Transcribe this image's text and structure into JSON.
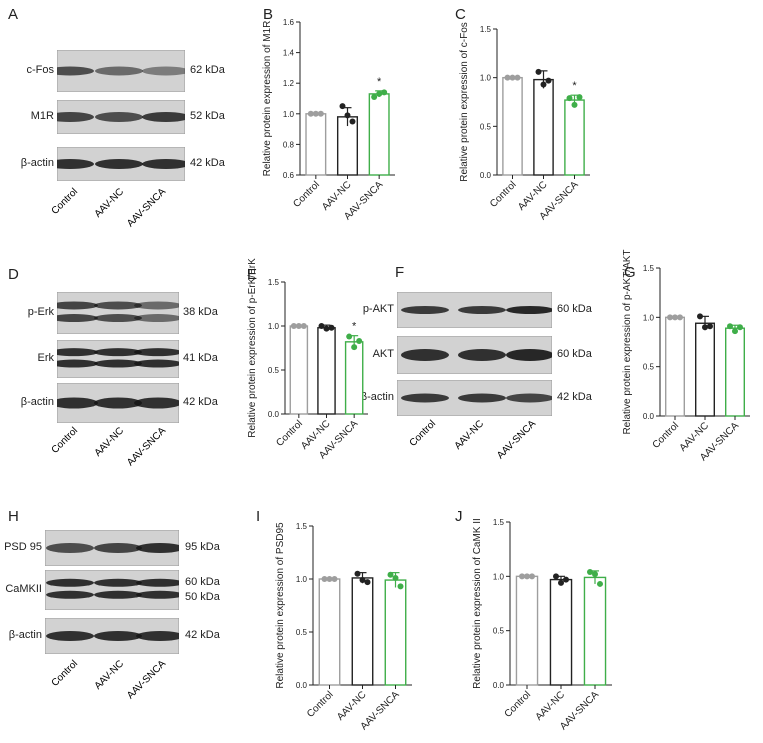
{
  "blots": [
    {
      "letter": "A",
      "rows": [
        {
          "label": "c-Fos",
          "kda": [
            "62 kDa"
          ]
        },
        {
          "label": "M1R",
          "kda": [
            "52 kDa"
          ]
        },
        {
          "label": "β-actin",
          "kda": [
            "42 kDa"
          ]
        }
      ],
      "lanes": [
        "Control",
        "AAV-NC",
        "AAV-SNCA"
      ]
    },
    {
      "letter": "D",
      "rows": [
        {
          "label": "p-Erk",
          "kda": [
            "38 kDa"
          ]
        },
        {
          "label": "Erk",
          "kda": [
            "41 kDa"
          ]
        },
        {
          "label": "β-actin",
          "kda": [
            "42 kDa"
          ]
        }
      ],
      "lanes": [
        "Control",
        "AAV-NC",
        "AAV-SNCA"
      ]
    },
    {
      "letter": "F",
      "rows": [
        {
          "label": "p-AKT",
          "kda": [
            "60 kDa"
          ]
        },
        {
          "label": "AKT",
          "kda": [
            "60 kDa"
          ]
        },
        {
          "label": "β-actin",
          "kda": [
            "42 kDa"
          ]
        }
      ],
      "lanes": [
        "Control",
        "AAV-NC",
        "AAV-SNCA"
      ]
    },
    {
      "letter": "H",
      "rows": [
        {
          "label": "PSD 95",
          "kda": [
            "95 kDa"
          ]
        },
        {
          "label": "CaMKII",
          "kda": [
            "60 kDa",
            "50 kDa"
          ]
        },
        {
          "label": "β-actin",
          "kda": [
            "42 kDa"
          ]
        }
      ],
      "lanes": [
        "Control",
        "AAV-NC",
        "AAV-SNCA"
      ]
    }
  ],
  "colors": {
    "control": "#9e9e9e",
    "nc": "#222222",
    "snca": "#3fae49"
  },
  "chart_data": [
    {
      "letter": "B",
      "type": "bar",
      "categories": [
        "Control",
        "AAV-NC",
        "AAV-SNCA"
      ],
      "ylabel": "Relative protein expression of M1R",
      "ylim": [
        0.6,
        1.6
      ],
      "yticks": [
        "0.6",
        "0.8",
        "1.0",
        "1.2",
        "1.4",
        "1.6"
      ],
      "values": [
        1.0,
        0.98,
        1.13
      ],
      "errors": [
        0.0,
        0.06,
        0.02
      ],
      "points": [
        [
          1.0,
          1.0,
          1.0
        ],
        [
          1.05,
          0.99,
          0.95
        ],
        [
          1.11,
          1.13,
          1.14
        ]
      ],
      "significance": [
        "",
        "",
        "*"
      ]
    },
    {
      "letter": "C",
      "type": "bar",
      "categories": [
        "Control",
        "AAV-NC",
        "AAV-SNCA"
      ],
      "ylabel": "Relative protein expression of c-Fos",
      "ylim": [
        0.0,
        1.5
      ],
      "yticks": [
        "0.0",
        "0.5",
        "1.0",
        "1.5"
      ],
      "values": [
        1.0,
        0.98,
        0.77
      ],
      "errors": [
        0.0,
        0.09,
        0.05
      ],
      "points": [
        [
          1.0,
          1.0,
          1.0
        ],
        [
          1.06,
          0.93,
          0.97
        ],
        [
          0.79,
          0.72,
          0.8
        ]
      ],
      "significance": [
        "",
        "",
        "*"
      ]
    },
    {
      "letter": "E",
      "type": "bar",
      "categories": [
        "Control",
        "AAV-NC",
        "AAV-SNCA"
      ],
      "ylabel": "Relative protein expression of p-ErK/ErK",
      "ylim": [
        0.0,
        1.5
      ],
      "yticks": [
        "0.0",
        "0.5",
        "1.0",
        "1.5"
      ],
      "values": [
        1.0,
        0.98,
        0.82
      ],
      "errors": [
        0.0,
        0.03,
        0.07
      ],
      "points": [
        [
          1.0,
          1.0,
          1.0
        ],
        [
          1.0,
          0.97,
          0.98
        ],
        [
          0.88,
          0.76,
          0.83
        ]
      ],
      "significance": [
        "",
        "",
        "*"
      ]
    },
    {
      "letter": "G",
      "type": "bar",
      "categories": [
        "Control",
        "AAV-NC",
        "AAV-SNCA"
      ],
      "ylabel": "Relative protein expression of p-AKT/AKT",
      "ylim": [
        0.0,
        1.5
      ],
      "yticks": [
        "0.0",
        "0.5",
        "1.0",
        "1.5"
      ],
      "values": [
        1.0,
        0.94,
        0.89
      ],
      "errors": [
        0.0,
        0.07,
        0.03
      ],
      "points": [
        [
          1.0,
          1.0,
          1.0
        ],
        [
          1.01,
          0.9,
          0.91
        ],
        [
          0.91,
          0.86,
          0.9
        ]
      ],
      "significance": [
        "",
        "",
        ""
      ]
    },
    {
      "letter": "I",
      "type": "bar",
      "categories": [
        "Control",
        "AAV-NC",
        "AAV-SNCA"
      ],
      "ylabel": "Relative protein expression of PSD95",
      "ylim": [
        0.0,
        1.5
      ],
      "yticks": [
        "0.0",
        "0.5",
        "1.0",
        "1.5"
      ],
      "values": [
        1.0,
        1.01,
        0.99
      ],
      "errors": [
        0.0,
        0.05,
        0.07
      ],
      "points": [
        [
          1.0,
          1.0,
          1.0
        ],
        [
          1.05,
          0.99,
          0.97
        ],
        [
          1.04,
          1.01,
          0.93
        ]
      ],
      "significance": [
        "",
        "",
        ""
      ]
    },
    {
      "letter": "J",
      "type": "bar",
      "categories": [
        "Control",
        "AAV-NC",
        "AAV-SNCA"
      ],
      "ylabel": "Relative protein expression of CaMK II",
      "ylim": [
        0.0,
        1.5
      ],
      "yticks": [
        "0.0",
        "0.5",
        "1.0",
        "1.5"
      ],
      "values": [
        1.0,
        0.97,
        0.99
      ],
      "errors": [
        0.0,
        0.03,
        0.06
      ],
      "points": [
        [
          1.0,
          1.0,
          1.0
        ],
        [
          1.0,
          0.94,
          0.97
        ],
        [
          1.04,
          1.02,
          0.93
        ]
      ],
      "significance": [
        "",
        "",
        ""
      ]
    }
  ]
}
